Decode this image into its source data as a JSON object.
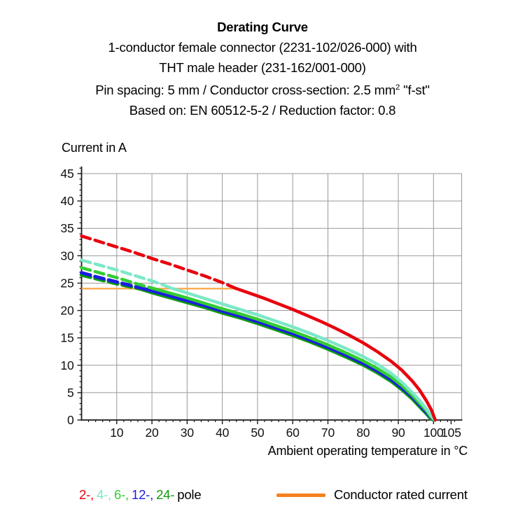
{
  "title_block": {
    "line1": "Derating Curve",
    "line2": "1-conductor female connector (2231-102/026-000) with",
    "line3": "THT male header (231-162/001-000)",
    "line4_pre": "Pin spacing: 5 mm / Conductor cross-section: 2.5 mm",
    "line4_sup": "2",
    "line4_post": " \"f-st\"",
    "line5": "Based on: EN 60512-5-2 / Reduction factor: 0.8"
  },
  "legend": {
    "pole_items": [
      {
        "label": "2-,"
      },
      {
        "label": "4-,"
      },
      {
        "label": "6-,"
      },
      {
        "label": "12-,"
      },
      {
        "label": "24-"
      }
    ],
    "pole_word": "pole",
    "rated": {
      "label": "Conductor rated current",
      "swatch_color": "#f5821f"
    }
  },
  "chart_data": {
    "type": "line",
    "title": "Derating Curve",
    "x_axis": {
      "label": "Ambient operating temperature in °C",
      "min": 0,
      "max": 108,
      "gridline_step": 10,
      "minor_tick_step": 2,
      "tick_labels": [
        10,
        20,
        30,
        40,
        50,
        60,
        70,
        80,
        90,
        100,
        105
      ]
    },
    "y_axis": {
      "label": "Current in A",
      "min": 0,
      "max": 46,
      "gridline_step": 5,
      "minor_tick_step": 1,
      "tick_labels": [
        0,
        5,
        10,
        15,
        20,
        25,
        30,
        35,
        40,
        45
      ]
    },
    "grid_color": "#999999",
    "spine_color": "#1a1a1a",
    "rated_line": {
      "label": "Conductor rated current",
      "color": "#fbaa4d",
      "y": 24,
      "x_start": 0,
      "x_end": 44
    },
    "series_note": "curves dashed above conductor rated current (24 A), solid below; solid_from = °C where curve crosses 24 A",
    "series": [
      {
        "name": "2-pole",
        "color": "#e8000d",
        "width": 4.5,
        "solid_from": 44,
        "points": [
          [
            0,
            33.6
          ],
          [
            5,
            32.6
          ],
          [
            10,
            31.6
          ],
          [
            15,
            30.6
          ],
          [
            20,
            29.5
          ],
          [
            25,
            28.5
          ],
          [
            30,
            27.4
          ],
          [
            35,
            26.3
          ],
          [
            40,
            25.1
          ],
          [
            44,
            24.0
          ],
          [
            48,
            23.1
          ],
          [
            52,
            22.2
          ],
          [
            56,
            21.2
          ],
          [
            60,
            20.2
          ],
          [
            64,
            19.1
          ],
          [
            68,
            18.0
          ],
          [
            72,
            16.8
          ],
          [
            76,
            15.5
          ],
          [
            80,
            14.1
          ],
          [
            84,
            12.5
          ],
          [
            88,
            10.7
          ],
          [
            91,
            9.1
          ],
          [
            94,
            7.1
          ],
          [
            96,
            5.5
          ],
          [
            98,
            3.5
          ],
          [
            99.5,
            1.7
          ],
          [
            100.5,
            0
          ]
        ]
      },
      {
        "name": "4-pole",
        "color": "#7ce8c8",
        "width": 4.5,
        "solid_from": 26,
        "points": [
          [
            0,
            29.2
          ],
          [
            5,
            28.3
          ],
          [
            10,
            27.4
          ],
          [
            15,
            26.4
          ],
          [
            20,
            25.4
          ],
          [
            26,
            24.0
          ],
          [
            30,
            23.2
          ],
          [
            35,
            22.2
          ],
          [
            40,
            21.2
          ],
          [
            45,
            20.2
          ],
          [
            50,
            19.2
          ],
          [
            55,
            18.1
          ],
          [
            60,
            17.0
          ],
          [
            65,
            15.8
          ],
          [
            70,
            14.5
          ],
          [
            75,
            13.1
          ],
          [
            80,
            11.6
          ],
          [
            84,
            10.2
          ],
          [
            88,
            8.5
          ],
          [
            91,
            6.9
          ],
          [
            94,
            5.0
          ],
          [
            96,
            3.6
          ],
          [
            98,
            2.0
          ],
          [
            99.3,
            0.8
          ],
          [
            100.3,
            0
          ]
        ]
      },
      {
        "name": "6-pole",
        "color": "#33cc33",
        "width": 4.5,
        "solid_from": 20.5,
        "points": [
          [
            0,
            27.8
          ],
          [
            5,
            26.9
          ],
          [
            10,
            26.0
          ],
          [
            15,
            25.0
          ],
          [
            20.5,
            24.0
          ],
          [
            25,
            23.2
          ],
          [
            30,
            22.3
          ],
          [
            35,
            21.3
          ],
          [
            40,
            20.3
          ],
          [
            45,
            19.4
          ],
          [
            50,
            18.4
          ],
          [
            55,
            17.3
          ],
          [
            60,
            16.2
          ],
          [
            65,
            15.0
          ],
          [
            70,
            13.7
          ],
          [
            75,
            12.3
          ],
          [
            80,
            10.8
          ],
          [
            84,
            9.4
          ],
          [
            88,
            7.8
          ],
          [
            91,
            6.3
          ],
          [
            94,
            4.5
          ],
          [
            96,
            3.1
          ],
          [
            98,
            1.7
          ],
          [
            99.2,
            0.6
          ],
          [
            100.2,
            0
          ]
        ]
      },
      {
        "name": "12-pole",
        "color": "#1c1ce0",
        "width": 5,
        "solid_from": 17.6,
        "points": [
          [
            0,
            26.9
          ],
          [
            5,
            26.0
          ],
          [
            10,
            25.2
          ],
          [
            15,
            24.4
          ],
          [
            17.6,
            24.0
          ],
          [
            20,
            23.6
          ],
          [
            25,
            22.7
          ],
          [
            30,
            21.8
          ],
          [
            35,
            20.9
          ],
          [
            40,
            19.9
          ],
          [
            45,
            19.0
          ],
          [
            50,
            18.0
          ],
          [
            55,
            16.9
          ],
          [
            60,
            15.8
          ],
          [
            65,
            14.6
          ],
          [
            70,
            13.3
          ],
          [
            75,
            11.9
          ],
          [
            80,
            10.4
          ],
          [
            84,
            9.0
          ],
          [
            88,
            7.4
          ],
          [
            91,
            5.9
          ],
          [
            94,
            4.2
          ],
          [
            96,
            2.8
          ],
          [
            98,
            1.4
          ],
          [
            99.2,
            0.5
          ],
          [
            100.2,
            0
          ]
        ]
      },
      {
        "name": "24-pole",
        "color": "#0f9a0f",
        "width": 5.5,
        "solid_from": 16.5,
        "points": [
          [
            0,
            26.5
          ],
          [
            5,
            25.7
          ],
          [
            10,
            24.9
          ],
          [
            15,
            24.2
          ],
          [
            16.5,
            24.0
          ],
          [
            20,
            23.3
          ],
          [
            25,
            22.4
          ],
          [
            30,
            21.5
          ],
          [
            35,
            20.6
          ],
          [
            40,
            19.6
          ],
          [
            45,
            18.7
          ],
          [
            50,
            17.7
          ],
          [
            55,
            16.6
          ],
          [
            60,
            15.5
          ],
          [
            65,
            14.3
          ],
          [
            70,
            13.0
          ],
          [
            75,
            11.6
          ],
          [
            80,
            10.1
          ],
          [
            84,
            8.7
          ],
          [
            88,
            7.1
          ],
          [
            91,
            5.6
          ],
          [
            94,
            3.9
          ],
          [
            96,
            2.5
          ],
          [
            98,
            1.2
          ],
          [
            99.2,
            0.3
          ],
          [
            100.2,
            0
          ]
        ]
      }
    ],
    "legend_position": "bottom",
    "grid": true
  }
}
